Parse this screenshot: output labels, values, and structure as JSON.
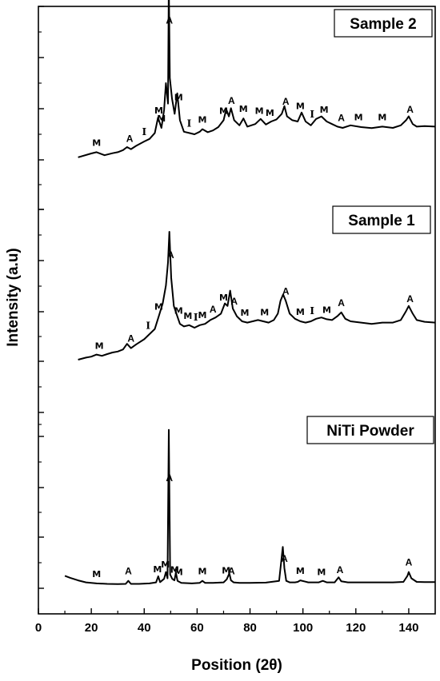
{
  "chart_data": {
    "type": "line",
    "title": "",
    "xlabel": "Position (2θ)",
    "ylabel": "Intensity (a.u)",
    "xlim": [
      0,
      150
    ],
    "xticks": [
      0,
      20,
      40,
      60,
      80,
      100,
      120,
      140
    ],
    "grid": false,
    "series": [
      {
        "name": "Sample 2",
        "color": "#000000",
        "x": [
          15,
          20,
          22,
          25,
          28,
          30,
          32,
          33.5,
          35,
          37,
          40,
          42,
          44,
          45.2,
          46.5,
          47.5,
          48.2,
          49,
          49.3,
          49.7,
          50.5,
          51.5,
          52.5,
          53.5,
          55,
          57,
          59,
          61,
          62,
          64,
          66,
          68,
          70,
          71,
          72,
          72.8,
          74,
          76,
          77.5,
          79,
          82,
          84,
          86,
          88,
          90,
          92,
          93,
          94,
          96,
          98,
          99.5,
          101,
          103,
          105,
          107,
          109,
          111,
          113,
          115,
          118,
          122,
          126,
          130,
          134,
          137,
          139,
          140,
          141.5,
          143,
          146,
          150
        ],
        "y": [
          1.1,
          1.25,
          1.3,
          1.18,
          1.26,
          1.3,
          1.38,
          1.5,
          1.42,
          1.55,
          1.72,
          1.82,
          2.05,
          2.65,
          2.25,
          2.95,
          4.0,
          3.2,
          7.95,
          4.2,
          3.4,
          2.8,
          3.6,
          2.55,
          2.1,
          2.05,
          2.0,
          2.1,
          2.2,
          2.08,
          2.15,
          2.28,
          2.55,
          2.98,
          2.7,
          3.02,
          2.55,
          2.35,
          2.62,
          2.3,
          2.4,
          2.6,
          2.38,
          2.5,
          2.58,
          2.8,
          3.1,
          2.7,
          2.55,
          2.5,
          2.85,
          2.5,
          2.35,
          2.6,
          2.7,
          2.5,
          2.4,
          2.3,
          2.25,
          2.35,
          2.28,
          2.24,
          2.3,
          2.25,
          2.35,
          2.55,
          2.7,
          2.4,
          2.3,
          2.32,
          2.3
        ]
      },
      {
        "name": "Sample 1",
        "color": "#000000",
        "x": [
          15,
          18,
          20,
          22,
          24,
          26,
          28,
          30,
          32,
          33.5,
          35,
          37,
          40,
          42,
          44,
          45.5,
          47,
          48.2,
          49,
          49.5,
          50.2,
          51.2,
          52.5,
          53.5,
          55,
          57,
          59,
          61,
          63,
          65,
          67,
          69,
          70.5,
          71.5,
          72.5,
          73.5,
          75,
          77,
          79,
          81,
          83,
          85,
          87,
          89,
          90.5,
          91.5,
          92.5,
          93.5,
          95,
          97,
          99,
          101,
          103,
          105,
          107,
          109,
          111,
          113,
          114.5,
          116,
          118,
          122,
          126,
          130,
          134,
          137,
          139,
          140,
          141.5,
          143,
          146,
          150
        ],
        "y": [
          1.0,
          1.08,
          1.12,
          1.2,
          1.15,
          1.22,
          1.28,
          1.32,
          1.4,
          1.62,
          1.45,
          1.6,
          1.8,
          2.0,
          2.2,
          2.7,
          3.2,
          3.9,
          4.8,
          6.0,
          4.2,
          3.1,
          2.7,
          2.4,
          2.3,
          2.35,
          2.25,
          2.35,
          2.4,
          2.55,
          2.65,
          2.8,
          3.2,
          3.1,
          3.7,
          3.0,
          2.7,
          2.5,
          2.45,
          2.5,
          2.55,
          2.5,
          2.45,
          2.55,
          2.8,
          3.3,
          3.55,
          3.3,
          2.8,
          2.6,
          2.5,
          2.45,
          2.5,
          2.6,
          2.65,
          2.58,
          2.55,
          2.7,
          2.85,
          2.6,
          2.5,
          2.45,
          2.4,
          2.45,
          2.45,
          2.55,
          2.9,
          3.1,
          2.8,
          2.55,
          2.48,
          2.45
        ]
      },
      {
        "name": "NiTi Powder",
        "color": "#000000",
        "x": [
          10,
          12,
          15,
          18,
          22,
          26,
          30,
          33,
          34,
          35,
          38,
          42,
          44.5,
          45.3,
          46,
          47.5,
          48.2,
          48.8,
          49.3,
          49.8,
          50.6,
          51.4,
          52,
          52.6,
          54,
          58,
          61,
          62,
          63,
          66,
          70,
          71.2,
          72.2,
          72.8,
          73.8,
          76,
          80,
          86,
          91,
          92.4,
          93,
          93.7,
          95,
          97,
          98,
          99,
          102,
          106,
          107.5,
          109,
          112,
          113.5,
          114.5,
          117,
          122,
          128,
          134,
          138,
          139.5,
          140,
          141,
          143,
          146,
          150
        ],
        "y": [
          0.4,
          0.32,
          0.22,
          0.14,
          0.1,
          0.08,
          0.07,
          0.08,
          0.2,
          0.08,
          0.08,
          0.1,
          0.14,
          0.38,
          0.15,
          0.28,
          0.55,
          0.3,
          6.2,
          0.45,
          0.28,
          0.22,
          0.52,
          0.2,
          0.12,
          0.1,
          0.12,
          0.2,
          0.12,
          0.12,
          0.14,
          0.26,
          0.5,
          0.22,
          0.14,
          0.12,
          0.12,
          0.13,
          0.2,
          1.55,
          0.7,
          0.2,
          0.14,
          0.14,
          0.16,
          0.22,
          0.14,
          0.14,
          0.2,
          0.14,
          0.14,
          0.34,
          0.18,
          0.14,
          0.14,
          0.14,
          0.14,
          0.16,
          0.4,
          0.55,
          0.3,
          0.16,
          0.15,
          0.15
        ]
      }
    ],
    "annotations": [
      {
        "series": "Sample 2",
        "items": [
          {
            "x": 22,
            "label": "M"
          },
          {
            "x": 34.5,
            "label": "A"
          },
          {
            "x": 40,
            "label": "I"
          },
          {
            "x": 45.5,
            "label": "M"
          },
          {
            "x": 46.5,
            "label": "M"
          },
          {
            "x": 49.5,
            "label": "A"
          },
          {
            "x": 53,
            "label": "M"
          },
          {
            "x": 57,
            "label": "I"
          },
          {
            "x": 62,
            "label": "M"
          },
          {
            "x": 70,
            "label": "M"
          },
          {
            "x": 73,
            "label": "A"
          },
          {
            "x": 77.5,
            "label": "M"
          },
          {
            "x": 83.5,
            "label": "M"
          },
          {
            "x": 87.5,
            "label": "M"
          },
          {
            "x": 93.5,
            "label": "A"
          },
          {
            "x": 99,
            "label": "M"
          },
          {
            "x": 103.5,
            "label": "I"
          },
          {
            "x": 108,
            "label": "M"
          },
          {
            "x": 114.5,
            "label": "A"
          },
          {
            "x": 121,
            "label": "M"
          },
          {
            "x": 130,
            "label": "M"
          },
          {
            "x": 140.5,
            "label": "A"
          }
        ]
      },
      {
        "series": "Sample 1",
        "items": [
          {
            "x": 23,
            "label": "M"
          },
          {
            "x": 35,
            "label": "A"
          },
          {
            "x": 41.5,
            "label": "I"
          },
          {
            "x": 45.5,
            "label": "M"
          },
          {
            "x": 50,
            "label": "A"
          },
          {
            "x": 53,
            "label": "M"
          },
          {
            "x": 56.5,
            "label": "M"
          },
          {
            "x": 59.5,
            "label": "I"
          },
          {
            "x": 62,
            "label": "M"
          },
          {
            "x": 66,
            "label": "A"
          },
          {
            "x": 70,
            "label": "M"
          },
          {
            "x": 74,
            "label": "A"
          },
          {
            "x": 78,
            "label": "M"
          },
          {
            "x": 85.5,
            "label": "M"
          },
          {
            "x": 93.5,
            "label": "A"
          },
          {
            "x": 99,
            "label": "M"
          },
          {
            "x": 103.5,
            "label": "I"
          },
          {
            "x": 109,
            "label": "M"
          },
          {
            "x": 114.5,
            "label": "A"
          },
          {
            "x": 140.5,
            "label": "A"
          }
        ]
      },
      {
        "series": "NiTi Powder",
        "items": [
          {
            "x": 22,
            "label": "M"
          },
          {
            "x": 34,
            "label": "A"
          },
          {
            "x": 45,
            "label": "M"
          },
          {
            "x": 48,
            "label": "M"
          },
          {
            "x": 49.5,
            "label": "A"
          },
          {
            "x": 51.5,
            "label": "M"
          },
          {
            "x": 53,
            "label": "M"
          },
          {
            "x": 62,
            "label": "M"
          },
          {
            "x": 71,
            "label": "M"
          },
          {
            "x": 73,
            "label": "A"
          },
          {
            "x": 93,
            "label": "A"
          },
          {
            "x": 99,
            "label": "M"
          },
          {
            "x": 107,
            "label": "M"
          },
          {
            "x": 114,
            "label": "A"
          },
          {
            "x": 140,
            "label": "A"
          }
        ]
      }
    ]
  }
}
